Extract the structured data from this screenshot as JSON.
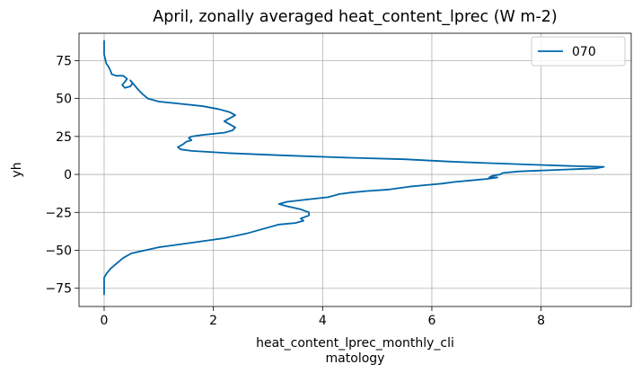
{
  "chart_data": {
    "type": "line",
    "title": "April, zonally averaged heat_content_lprec (W m-2)",
    "xlabel_lines": [
      "heat_content_lprec_monthly_cli",
      "matology"
    ],
    "ylabel": "yh",
    "xlim": [
      -0.46,
      9.65
    ],
    "ylim": [
      -87,
      93
    ],
    "x_ticks": [
      0,
      2,
      4,
      6,
      8
    ],
    "x_tick_labels": [
      "0",
      "2",
      "4",
      "6",
      "8"
    ],
    "y_ticks": [
      -75,
      -50,
      -25,
      0,
      25,
      50,
      75
    ],
    "y_tick_labels": [
      "−75",
      "−50",
      "−25",
      "0",
      "25",
      "50",
      "75"
    ],
    "grid": true,
    "legend_position": "top-right",
    "colors": {
      "series": "#0066aa",
      "grid": "#b0b0b0",
      "axes": "#000000"
    },
    "series": [
      {
        "name": "070",
        "points": [
          [
            0.0,
            88
          ],
          [
            0.0,
            85
          ],
          [
            0.0,
            82
          ],
          [
            0.0,
            79
          ],
          [
            0.02,
            76
          ],
          [
            0.04,
            73
          ],
          [
            0.08,
            71
          ],
          [
            0.12,
            68
          ],
          [
            0.14,
            66
          ],
          [
            0.22,
            65
          ],
          [
            0.35,
            65
          ],
          [
            0.42,
            63
          ],
          [
            0.38,
            61
          ],
          [
            0.33,
            59
          ],
          [
            0.38,
            57
          ],
          [
            0.48,
            58
          ],
          [
            0.52,
            60
          ],
          [
            0.48,
            62
          ],
          [
            0.55,
            59
          ],
          [
            0.62,
            56
          ],
          [
            0.7,
            53
          ],
          [
            0.8,
            50
          ],
          [
            1.0,
            48
          ],
          [
            1.4,
            46.5
          ],
          [
            1.8,
            45
          ],
          [
            2.1,
            43
          ],
          [
            2.3,
            41
          ],
          [
            2.4,
            39
          ],
          [
            2.3,
            37
          ],
          [
            2.2,
            35
          ],
          [
            2.3,
            33
          ],
          [
            2.4,
            31
          ],
          [
            2.35,
            29
          ],
          [
            2.2,
            27.5
          ],
          [
            1.8,
            26
          ],
          [
            1.6,
            25
          ],
          [
            1.55,
            24
          ],
          [
            1.6,
            22.5
          ],
          [
            1.5,
            21.5
          ],
          [
            1.45,
            20
          ],
          [
            1.4,
            19
          ],
          [
            1.35,
            18
          ],
          [
            1.4,
            16.5
          ],
          [
            1.6,
            15.5
          ],
          [
            2.3,
            14
          ],
          [
            3.3,
            12.5
          ],
          [
            4.5,
            11
          ],
          [
            5.5,
            10
          ],
          [
            6.3,
            8.5
          ],
          [
            7.0,
            7.5
          ],
          [
            7.8,
            6.5
          ],
          [
            8.6,
            5.5
          ],
          [
            9.15,
            5
          ],
          [
            9.0,
            4
          ],
          [
            8.3,
            3
          ],
          [
            7.6,
            2
          ],
          [
            7.3,
            1
          ],
          [
            7.25,
            0
          ],
          [
            7.1,
            -1
          ],
          [
            7.05,
            -2
          ],
          [
            7.2,
            -2
          ],
          [
            7.0,
            -3
          ],
          [
            6.7,
            -4
          ],
          [
            6.4,
            -5
          ],
          [
            6.2,
            -6
          ],
          [
            5.9,
            -7
          ],
          [
            5.6,
            -8
          ],
          [
            5.4,
            -9
          ],
          [
            5.2,
            -10
          ],
          [
            4.8,
            -11
          ],
          [
            4.5,
            -12
          ],
          [
            4.3,
            -13
          ],
          [
            4.2,
            -14
          ],
          [
            4.1,
            -15
          ],
          [
            3.6,
            -17
          ],
          [
            3.35,
            -18
          ],
          [
            3.2,
            -19.5
          ],
          [
            3.35,
            -21
          ],
          [
            3.6,
            -23
          ],
          [
            3.75,
            -25
          ],
          [
            3.75,
            -27
          ],
          [
            3.6,
            -29
          ],
          [
            3.65,
            -30.5
          ],
          [
            3.5,
            -32
          ],
          [
            3.2,
            -33
          ],
          [
            3.0,
            -35
          ],
          [
            2.8,
            -37
          ],
          [
            2.6,
            -39
          ],
          [
            2.2,
            -42
          ],
          [
            1.8,
            -44
          ],
          [
            1.4,
            -46
          ],
          [
            1.0,
            -48
          ],
          [
            0.75,
            -50
          ],
          [
            0.5,
            -52
          ],
          [
            0.35,
            -55
          ],
          [
            0.25,
            -58
          ],
          [
            0.12,
            -62
          ],
          [
            0.05,
            -65
          ],
          [
            0.0,
            -68
          ],
          [
            0.0,
            -71
          ],
          [
            0.0,
            -74
          ],
          [
            0.0,
            -77
          ],
          [
            0.0,
            -79
          ]
        ]
      }
    ]
  }
}
